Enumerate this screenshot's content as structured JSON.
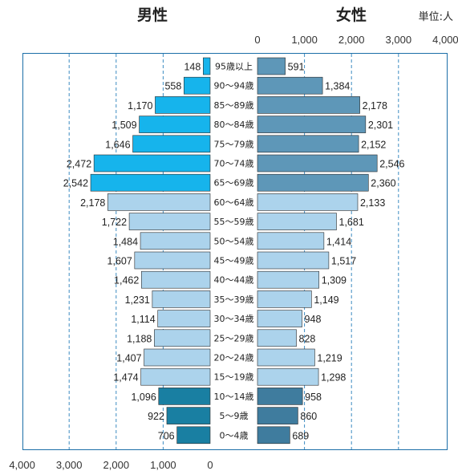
{
  "chart_data": {
    "type": "bar",
    "orientation": "horizontal-population-pyramid",
    "unit_label": "単位:人",
    "left_title": "男性",
    "right_title": "女性",
    "xlim": [
      0,
      4000
    ],
    "left_ticks": [
      "4,000",
      "3,000",
      "2,000",
      "1,000",
      "0"
    ],
    "right_ticks": [
      "0",
      "1,000",
      "2,000",
      "3,000",
      "4,000"
    ],
    "categories": [
      "95歳以上",
      "90～94歳",
      "85～89歳",
      "80～84歳",
      "75～79歳",
      "70～74歳",
      "65～69歳",
      "60～64歳",
      "55～59歳",
      "50～54歳",
      "45～49歳",
      "40～44歳",
      "35～39歳",
      "30～34歳",
      "25～29歳",
      "20～24歳",
      "15～19歳",
      "10～14歳",
      "5～9歳",
      "0～4歳"
    ],
    "series": [
      {
        "name": "男性",
        "values": [
          148,
          558,
          1170,
          1509,
          1646,
          2472,
          2542,
          2178,
          1722,
          1484,
          1607,
          1462,
          1231,
          1114,
          1188,
          1407,
          1474,
          1096,
          922,
          706
        ],
        "labels": [
          "148",
          "558",
          "1,170",
          "1,509",
          "1,646",
          "2,472",
          "2,542",
          "2,178",
          "1,722",
          "1,484",
          "1,607",
          "1,462",
          "1,231",
          "1,114",
          "1,188",
          "1,407",
          "1,474",
          "1,096",
          "922",
          "706"
        ]
      },
      {
        "name": "女性",
        "values": [
          591,
          1384,
          2178,
          2301,
          2152,
          2546,
          2360,
          2133,
          1681,
          1414,
          1517,
          1309,
          1149,
          948,
          828,
          1219,
          1298,
          958,
          860,
          689
        ],
        "labels": [
          "591",
          "1,384",
          "2,178",
          "2,301",
          "2,152",
          "2,546",
          "2,360",
          "2,133",
          "1,681",
          "1,414",
          "1,517",
          "1,309",
          "1,149",
          "948",
          "828",
          "1,219",
          "1,298",
          "958",
          "860",
          "689"
        ]
      }
    ],
    "grid": true,
    "colors": {
      "male_elderly": "#16b4ec",
      "male_working": "#acd3ec",
      "male_young": "#197fa2",
      "female_elderly": "#5e97b8",
      "female_working": "#acd3ec",
      "female_young": "#3f7c9e",
      "frame": "#1c6fa8",
      "grid": "#3d8cc2"
    }
  }
}
